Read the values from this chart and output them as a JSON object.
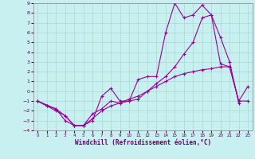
{
  "xlabel": "Windchill (Refroidissement éolien,°C)",
  "bg_color": "#c8f0f0",
  "grid_color": "#aad8d0",
  "line_color": "#990099",
  "xlim": [
    -0.5,
    23.5
  ],
  "ylim": [
    -4,
    9
  ],
  "xticks": [
    0,
    1,
    2,
    3,
    4,
    5,
    6,
    7,
    8,
    9,
    10,
    11,
    12,
    13,
    14,
    15,
    16,
    17,
    18,
    19,
    20,
    21,
    22,
    23
  ],
  "yticks": [
    -4,
    -3,
    -2,
    -1,
    0,
    1,
    2,
    3,
    4,
    5,
    6,
    7,
    8,
    9
  ],
  "series1": [
    [
      0,
      -1
    ],
    [
      1,
      -1.5
    ],
    [
      2,
      -1.8
    ],
    [
      3,
      -3.0
    ],
    [
      4,
      -3.5
    ],
    [
      5,
      -3.5
    ],
    [
      6,
      -3.0
    ],
    [
      7,
      -0.5
    ],
    [
      8,
      0.3
    ],
    [
      9,
      -1.0
    ],
    [
      10,
      -1.0
    ],
    [
      11,
      1.2
    ],
    [
      12,
      1.5
    ],
    [
      13,
      1.5
    ],
    [
      14,
      6.0
    ],
    [
      15,
      9.0
    ],
    [
      16,
      7.5
    ],
    [
      17,
      7.8
    ],
    [
      18,
      8.8
    ],
    [
      19,
      7.8
    ],
    [
      20,
      2.8
    ],
    [
      21,
      2.5
    ],
    [
      22,
      -1.0
    ],
    [
      23,
      0.5
    ]
  ],
  "series2": [
    [
      0,
      -1.0
    ],
    [
      2,
      -1.8
    ],
    [
      3,
      -2.5
    ],
    [
      4,
      -3.5
    ],
    [
      5,
      -3.5
    ],
    [
      6,
      -2.3
    ],
    [
      7,
      -1.8
    ],
    [
      8,
      -1.0
    ],
    [
      9,
      -1.2
    ],
    [
      10,
      -1.0
    ],
    [
      11,
      -0.8
    ],
    [
      12,
      0.0
    ],
    [
      13,
      0.8
    ],
    [
      14,
      1.5
    ],
    [
      15,
      2.5
    ],
    [
      16,
      3.8
    ],
    [
      17,
      5.0
    ],
    [
      18,
      7.5
    ],
    [
      19,
      7.8
    ],
    [
      20,
      5.5
    ],
    [
      21,
      3.0
    ],
    [
      22,
      -1.2
    ]
  ],
  "series3": [
    [
      0,
      -1.0
    ],
    [
      1,
      -1.5
    ],
    [
      2,
      -2.0
    ],
    [
      3,
      -2.5
    ],
    [
      4,
      -3.5
    ],
    [
      5,
      -3.5
    ],
    [
      6,
      -2.8
    ],
    [
      7,
      -2.0
    ],
    [
      8,
      -1.5
    ],
    [
      9,
      -1.2
    ],
    [
      10,
      -0.8
    ],
    [
      11,
      -0.5
    ],
    [
      12,
      0.0
    ],
    [
      13,
      0.5
    ],
    [
      14,
      1.0
    ],
    [
      15,
      1.5
    ],
    [
      16,
      1.8
    ],
    [
      17,
      2.0
    ],
    [
      18,
      2.2
    ],
    [
      19,
      2.3
    ],
    [
      20,
      2.5
    ],
    [
      21,
      2.5
    ],
    [
      22,
      -1.0
    ],
    [
      23,
      -1.0
    ]
  ]
}
